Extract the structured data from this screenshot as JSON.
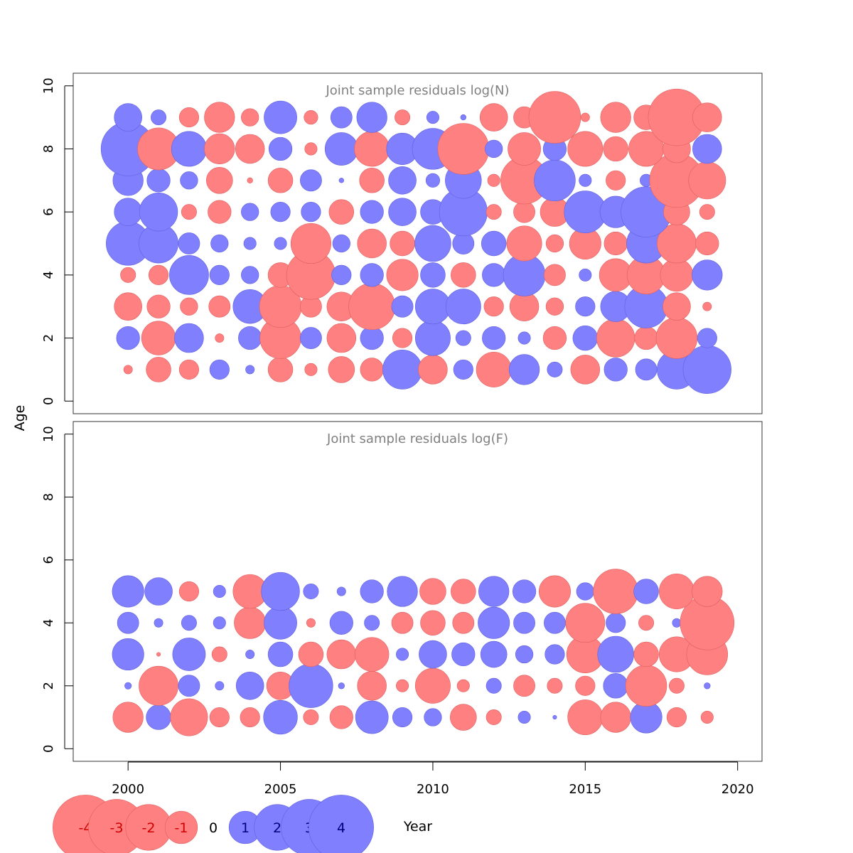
{
  "chart_data": {
    "type": "bubble",
    "xlabel": "Year",
    "ylabel": "Age",
    "xlim": [
      1998.2,
      2020.8
    ],
    "xticks": [
      2000,
      2005,
      2010,
      2015,
      2020
    ],
    "colors": {
      "negative": "#FF8080",
      "positive": "#8080FF"
    },
    "panels": [
      {
        "title": "Joint sample residuals log(N)",
        "ylim": [
          -0.4,
          10.4
        ],
        "yticks": [
          0,
          2,
          4,
          6,
          8,
          10
        ],
        "years": [
          2000,
          2001,
          2002,
          2003,
          2004,
          2005,
          2006,
          2007,
          2008,
          2009,
          2010,
          2011,
          2012,
          2013,
          2014,
          2015,
          2016,
          2017,
          2018,
          2019
        ],
        "ages": [
          1,
          2,
          3,
          4,
          5,
          6,
          7,
          8,
          9
        ],
        "residuals": [
          [
            -0.1,
            -0.8,
            -0.5,
            0.5,
            0.1,
            -0.8,
            -0.2,
            -0.9,
            -0.7,
            2.0,
            -1.1,
            0.5,
            -1.6,
            1.2,
            0.3,
            -1.1,
            0.7,
            0.6,
            2.0,
            3.0
          ],
          [
            0.7,
            -1.5,
            1.1,
            -0.1,
            0.7,
            -2.2,
            0.6,
            -1.1,
            0.7,
            -0.5,
            1.6,
            0.3,
            0.7,
            0.2,
            -0.7,
            0.8,
            -1.9,
            -0.7,
            -2.2,
            0.5
          ],
          [
            -1.0,
            -0.7,
            -0.4,
            -0.6,
            1.5,
            -2.3,
            -0.6,
            -1.1,
            -2.8,
            0.6,
            1.6,
            1.6,
            -0.5,
            -1.1,
            -0.4,
            0.5,
            1.2,
            2.4,
            -1.0,
            -0.1
          ],
          [
            -0.3,
            -0.5,
            2.0,
            0.5,
            0.4,
            -0.8,
            -3.1,
            0.5,
            0.7,
            -1.3,
            0.8,
            -0.8,
            0.7,
            2.3,
            -0.6,
            0.2,
            -1.4,
            -1.9,
            -1.4,
            1.2
          ],
          [
            2.5,
            2.0,
            0.6,
            0.4,
            0.2,
            0.2,
            -2.1,
            0.4,
            -1.1,
            -0.8,
            1.7,
            0.6,
            0.8,
            -1.6,
            -0.4,
            -1.3,
            -0.7,
            2.0,
            -2.0,
            -0.7
          ],
          [
            1.0,
            1.9,
            -0.3,
            -0.7,
            0.4,
            0.5,
            0.5,
            -0.8,
            0.7,
            1.0,
            0.8,
            3.0,
            -0.3,
            -0.6,
            -1.1,
            2.3,
            1.3,
            3.3,
            -0.9,
            -0.3
          ],
          [
            1.2,
            0.7,
            0.4,
            -0.9,
            -0.04,
            -0.8,
            0.6,
            0.03,
            -0.8,
            1.0,
            0.25,
            1.7,
            -0.2,
            -2.9,
            2.2,
            0.2,
            -0.5,
            0.2,
            -3.8,
            -1.8
          ],
          [
            3.8,
            -2.3,
            1.6,
            -1.2,
            -1.1,
            0.7,
            -0.2,
            1.4,
            -1.6,
            1.3,
            2.2,
            -3.4,
            0.4,
            -1.4,
            0.7,
            -1.6,
            -0.8,
            -1.6,
            -1.0,
            1.1
          ],
          [
            1.0,
            0.3,
            -0.5,
            -1.2,
            -0.4,
            1.4,
            -0.25,
            0.6,
            1.2,
            -0.3,
            0.2,
            0.04,
            -1.0,
            -0.6,
            -3.5,
            -0.1,
            -1.2,
            -0.8,
            -4.2,
            -1.1
          ]
        ]
      },
      {
        "title": "Joint sample residuals log(F)",
        "ylim": [
          -0.4,
          10.4
        ],
        "yticks": [
          0,
          2,
          4,
          6,
          8,
          10
        ],
        "years": [
          2000,
          2001,
          2002,
          2003,
          2004,
          2005,
          2006,
          2007,
          2008,
          2009,
          2010,
          2011,
          2012,
          2013,
          2014,
          2015,
          2016,
          2017,
          2018,
          2019
        ],
        "ages": [
          1,
          2,
          3,
          4,
          5
        ],
        "residuals": [
          [
            -1.2,
            0.8,
            -1.8,
            -0.5,
            -0.5,
            1.5,
            -0.3,
            -0.7,
            1.4,
            0.5,
            0.4,
            -0.9,
            -0.3,
            0.2,
            0.02,
            -1.6,
            -1.2,
            1.3,
            -0.5,
            -0.2
          ],
          [
            0.06,
            -2.0,
            0.6,
            0.1,
            1.0,
            -1.0,
            2.5,
            0.05,
            -1.1,
            -0.2,
            -1.6,
            -0.2,
            0.3,
            -0.6,
            -0.3,
            -0.5,
            0.8,
            -2.2,
            -0.3,
            0.05
          ],
          [
            1.3,
            -0.02,
            1.4,
            -0.3,
            0.1,
            0.8,
            -0.8,
            -1.1,
            -1.5,
            0.2,
            1.0,
            0.7,
            0.9,
            0.4,
            0.5,
            -1.8,
            1.7,
            -0.8,
            -1.6,
            -2.2
          ],
          [
            0.6,
            0.1,
            0.3,
            0.2,
            -1.3,
            1.4,
            -0.1,
            0.7,
            0.3,
            -0.6,
            -0.8,
            -0.6,
            1.3,
            0.6,
            0.6,
            -2.0,
            0.5,
            -0.3,
            0.1,
            -3.8
          ],
          [
            1.3,
            1.0,
            -0.5,
            0.2,
            -1.5,
            1.9,
            0.3,
            0.1,
            0.7,
            1.2,
            -0.9,
            -0.8,
            1.2,
            0.7,
            -1.3,
            0.4,
            -2.6,
            0.8,
            -1.6,
            -1.2
          ]
        ]
      }
    ],
    "legend": {
      "placement": "bottom",
      "values": [
        -4,
        -3,
        -2,
        -1,
        0,
        1,
        2,
        3,
        4
      ],
      "labels": [
        "-4",
        "-3",
        "-2",
        "-1",
        "0",
        "1",
        "2",
        "3",
        "4"
      ]
    }
  }
}
